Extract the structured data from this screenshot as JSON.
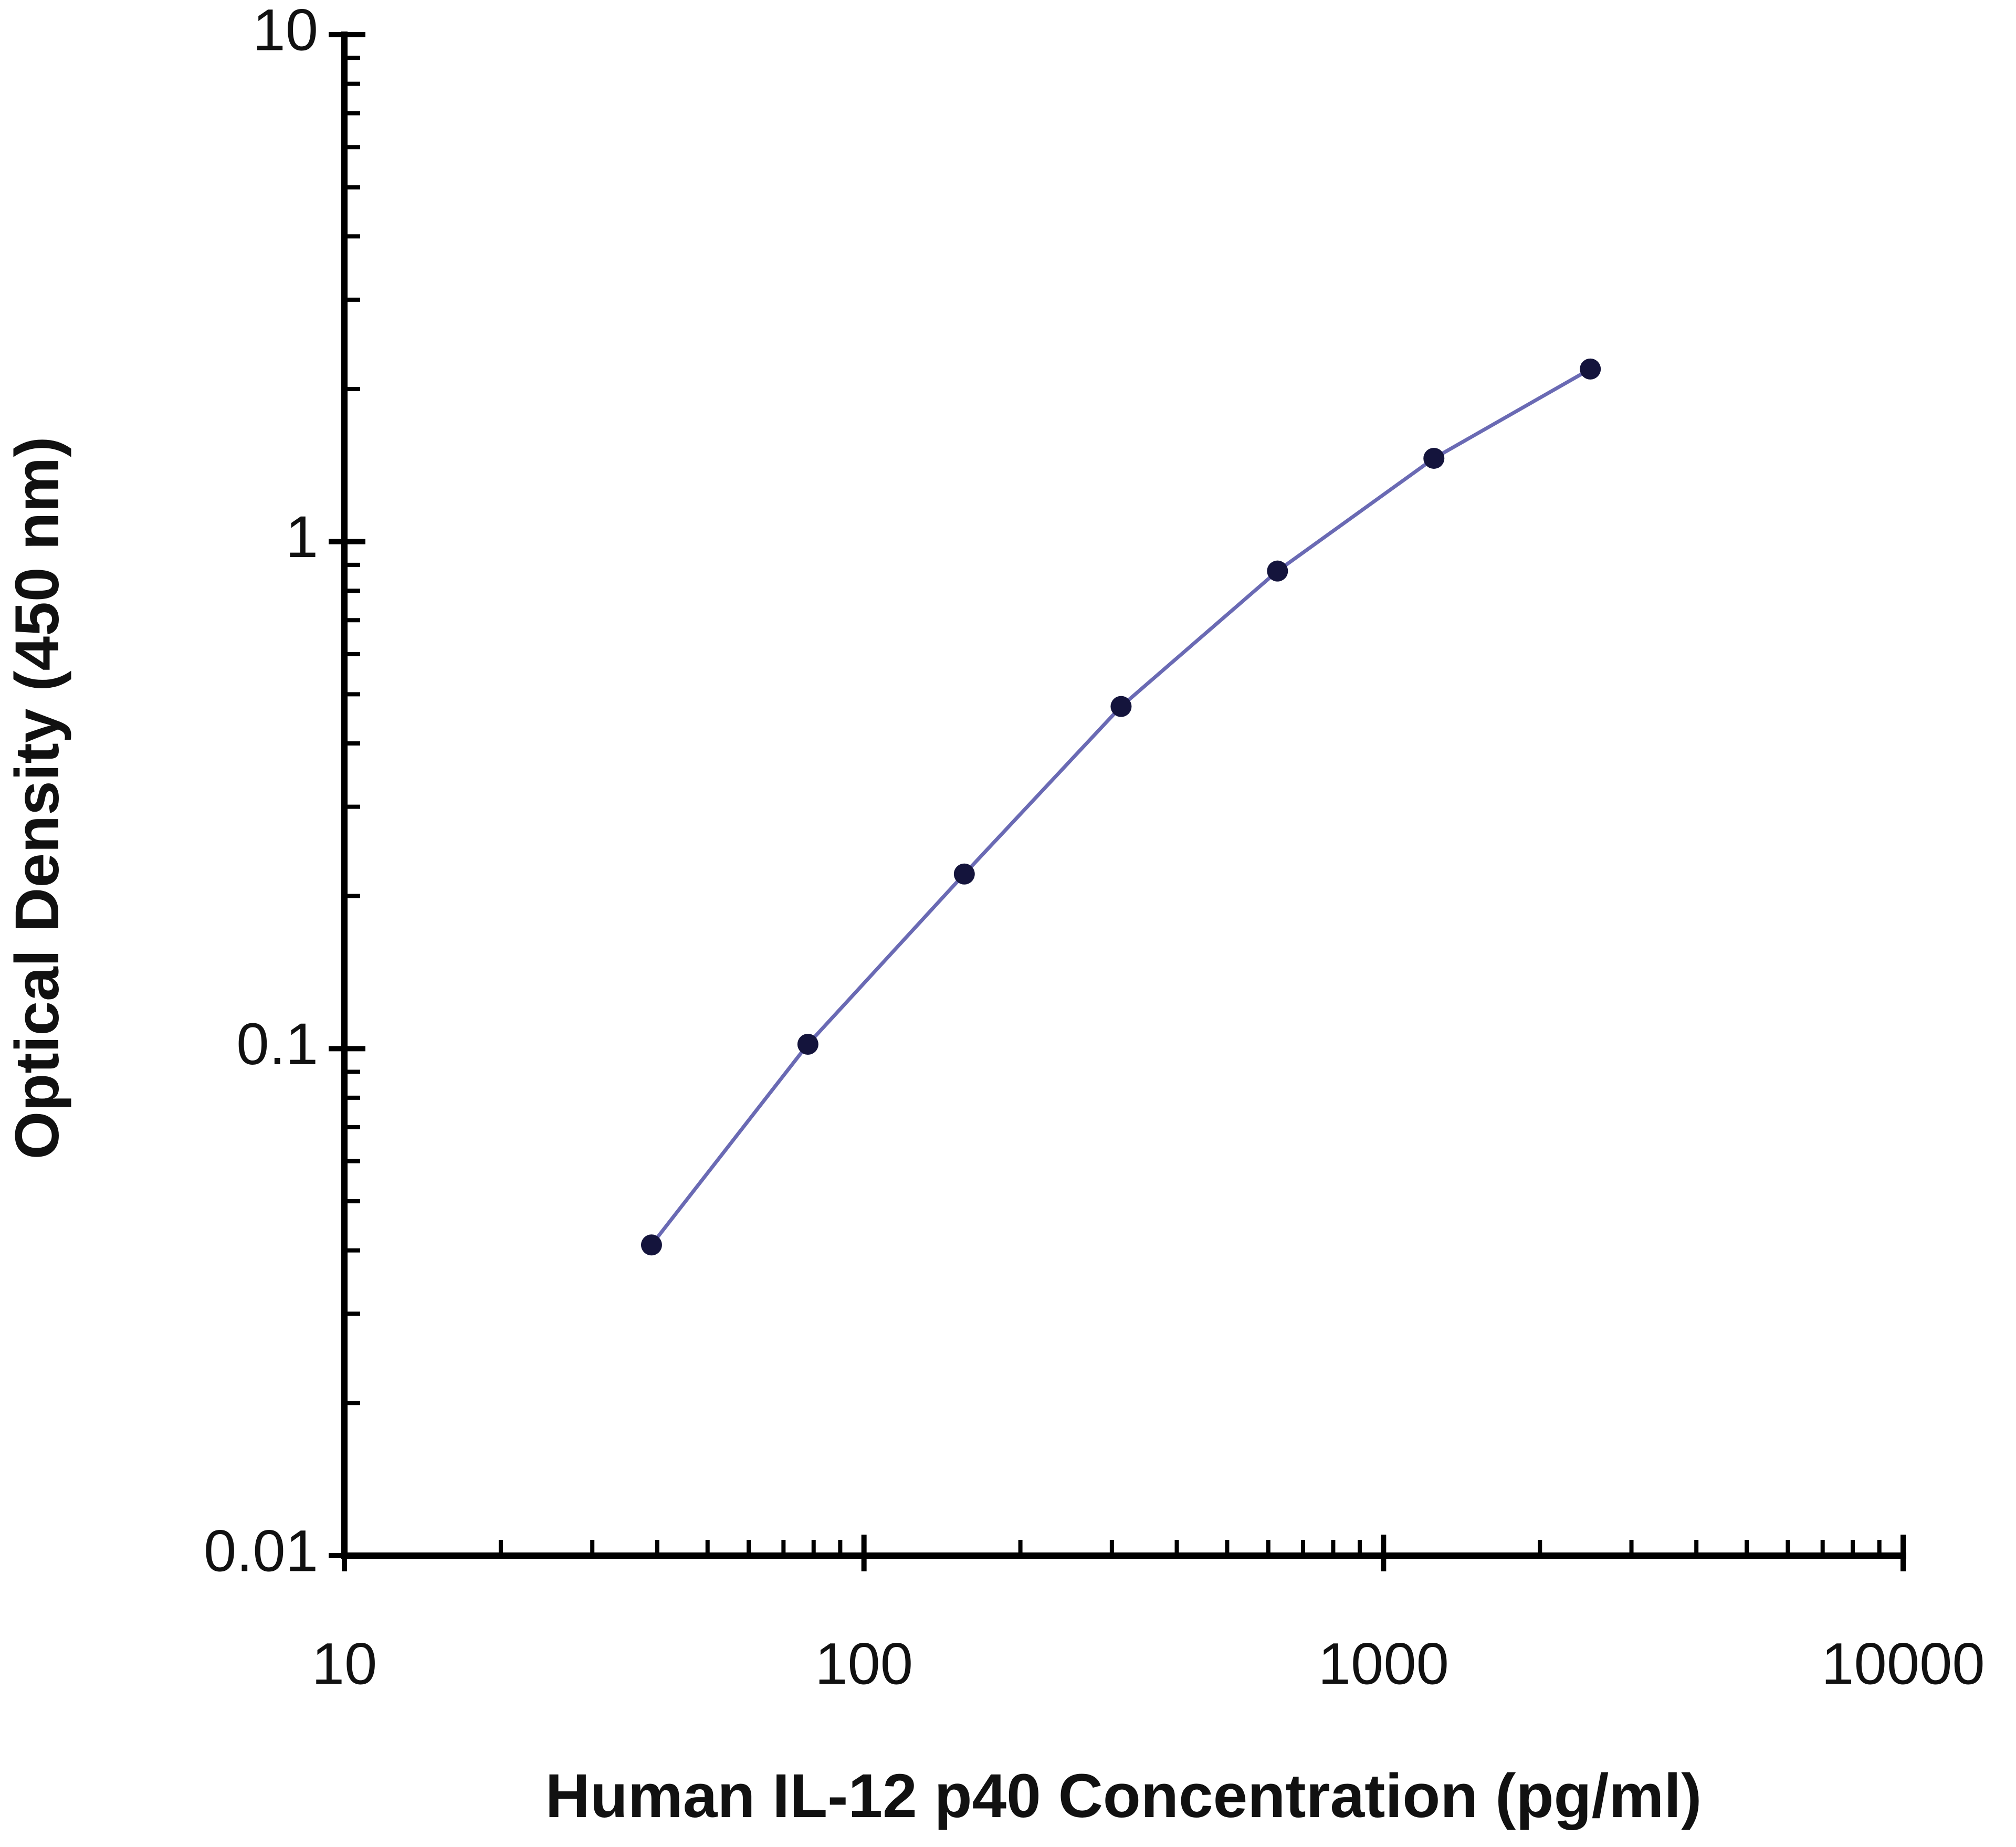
{
  "chart_data": {
    "type": "line",
    "x_label": "Human IL-12 p40 Concentration (pg/ml)",
    "y_label": "Optical Density (450 nm)",
    "x": [
      39,
      78,
      156,
      312.5,
      625,
      1250,
      2500
    ],
    "series": [
      {
        "color": "#6a6ab4",
        "marker_color": "#14143c",
        "values": [
          0.041,
          0.102,
          0.221,
          0.473,
          0.875,
          1.46,
          2.19
        ]
      }
    ],
    "xlim": [
      10,
      10000
    ],
    "xticks": [
      10,
      100,
      1000,
      10000
    ],
    "ylim": [
      0.01,
      10
    ],
    "yticks": [
      0.01,
      0.1,
      1,
      10
    ],
    "log_x": true,
    "log_y": true,
    "minor_ticks": true,
    "grid": false
  }
}
